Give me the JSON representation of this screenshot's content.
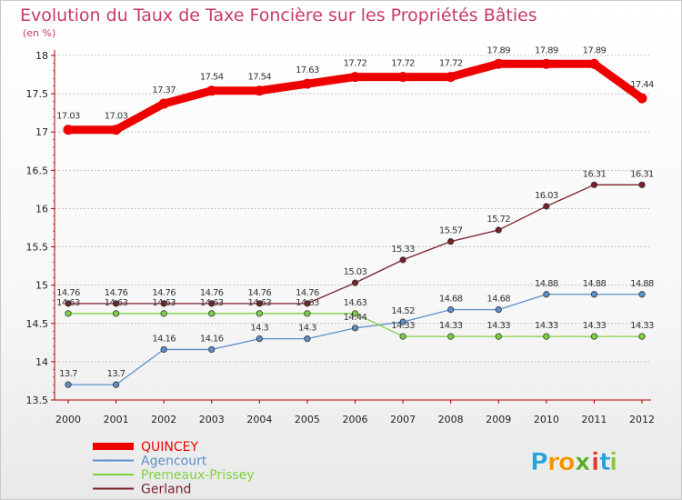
{
  "chart_data": {
    "type": "line",
    "title": "Evolution du Taux de Taxe Foncière sur les Propriétés Bâties",
    "subtitle": "(en %)",
    "x": [
      "2000",
      "2001",
      "2002",
      "2003",
      "2004",
      "2005",
      "2006",
      "2007",
      "2008",
      "2009",
      "2010",
      "2011",
      "2012"
    ],
    "ylim": [
      13.5,
      18
    ],
    "yticks": [
      "13.5",
      "14",
      "14.5",
      "15",
      "15.5",
      "16",
      "16.5",
      "17",
      "17.5",
      "18"
    ],
    "grid": "horizontal",
    "legend_position": "bottom-left",
    "series": [
      {
        "name": "QUINCEY",
        "color": "#ee0000",
        "values": [
          17.03,
          17.03,
          17.37,
          17.54,
          17.54,
          17.63,
          17.72,
          17.72,
          17.72,
          17.89,
          17.89,
          17.89,
          17.44
        ],
        "labels": [
          "17.03",
          "17.03",
          "17.37",
          "17.54",
          "17.54",
          "17.63",
          "17.72",
          "17.72",
          "17.72",
          "17.89",
          "17.89",
          "17.89",
          "17.44"
        ]
      },
      {
        "name": "Agencourt",
        "color": "#5b8fc9",
        "values": [
          13.7,
          13.7,
          14.16,
          14.16,
          14.3,
          14.3,
          14.44,
          14.52,
          14.68,
          14.68,
          14.88,
          14.88,
          14.88
        ],
        "labels": [
          "13.7",
          "13.7",
          "14.16",
          "14.16",
          "14.3",
          "14.3",
          "14.44",
          "14.52",
          "14.68",
          "14.68",
          "14.88",
          "14.88",
          "14.88"
        ]
      },
      {
        "name": "Premeaux-Prissey",
        "color": "#7ed23f",
        "values": [
          14.63,
          14.63,
          14.63,
          14.63,
          14.63,
          14.63,
          14.63,
          14.33,
          14.33,
          14.33,
          14.33,
          14.33,
          14.33
        ],
        "labels": [
          "14.63",
          "14.63",
          "14.63",
          "14.63",
          "14.63",
          "14.63",
          "14.63",
          "14.33",
          "14.33",
          "14.33",
          "14.33",
          "14.33",
          "14.33"
        ]
      },
      {
        "name": "Gerland",
        "color": "#7a1f2b",
        "values": [
          14.76,
          14.76,
          14.76,
          14.76,
          14.76,
          14.76,
          15.03,
          15.33,
          15.57,
          15.72,
          16.03,
          16.31,
          16.31
        ],
        "labels": [
          "14.76",
          "14.76",
          "14.76",
          "14.76",
          "14.76",
          "14.76",
          "15.03",
          "15.33",
          "15.57",
          "15.72",
          "16.03",
          "16.31",
          "16.31"
        ]
      }
    ]
  },
  "legend_items": [
    {
      "name": "QUINCEY",
      "color": "#ee0000"
    },
    {
      "name": "Agencourt",
      "color": "#5b8fc9"
    },
    {
      "name": "Premeaux-Prissey",
      "color": "#7ed23f"
    },
    {
      "name": "Gerland",
      "color": "#7a1f2b"
    }
  ],
  "brand": {
    "logo_letters": [
      "P",
      "r",
      "o",
      "x",
      "i",
      "t",
      "i"
    ],
    "logo_colors": [
      "#2aa1d8",
      "#f29400",
      "#f29400",
      "#5aa82c",
      "#e3342f",
      "#2aa1d8",
      "#8dc63f"
    ]
  }
}
